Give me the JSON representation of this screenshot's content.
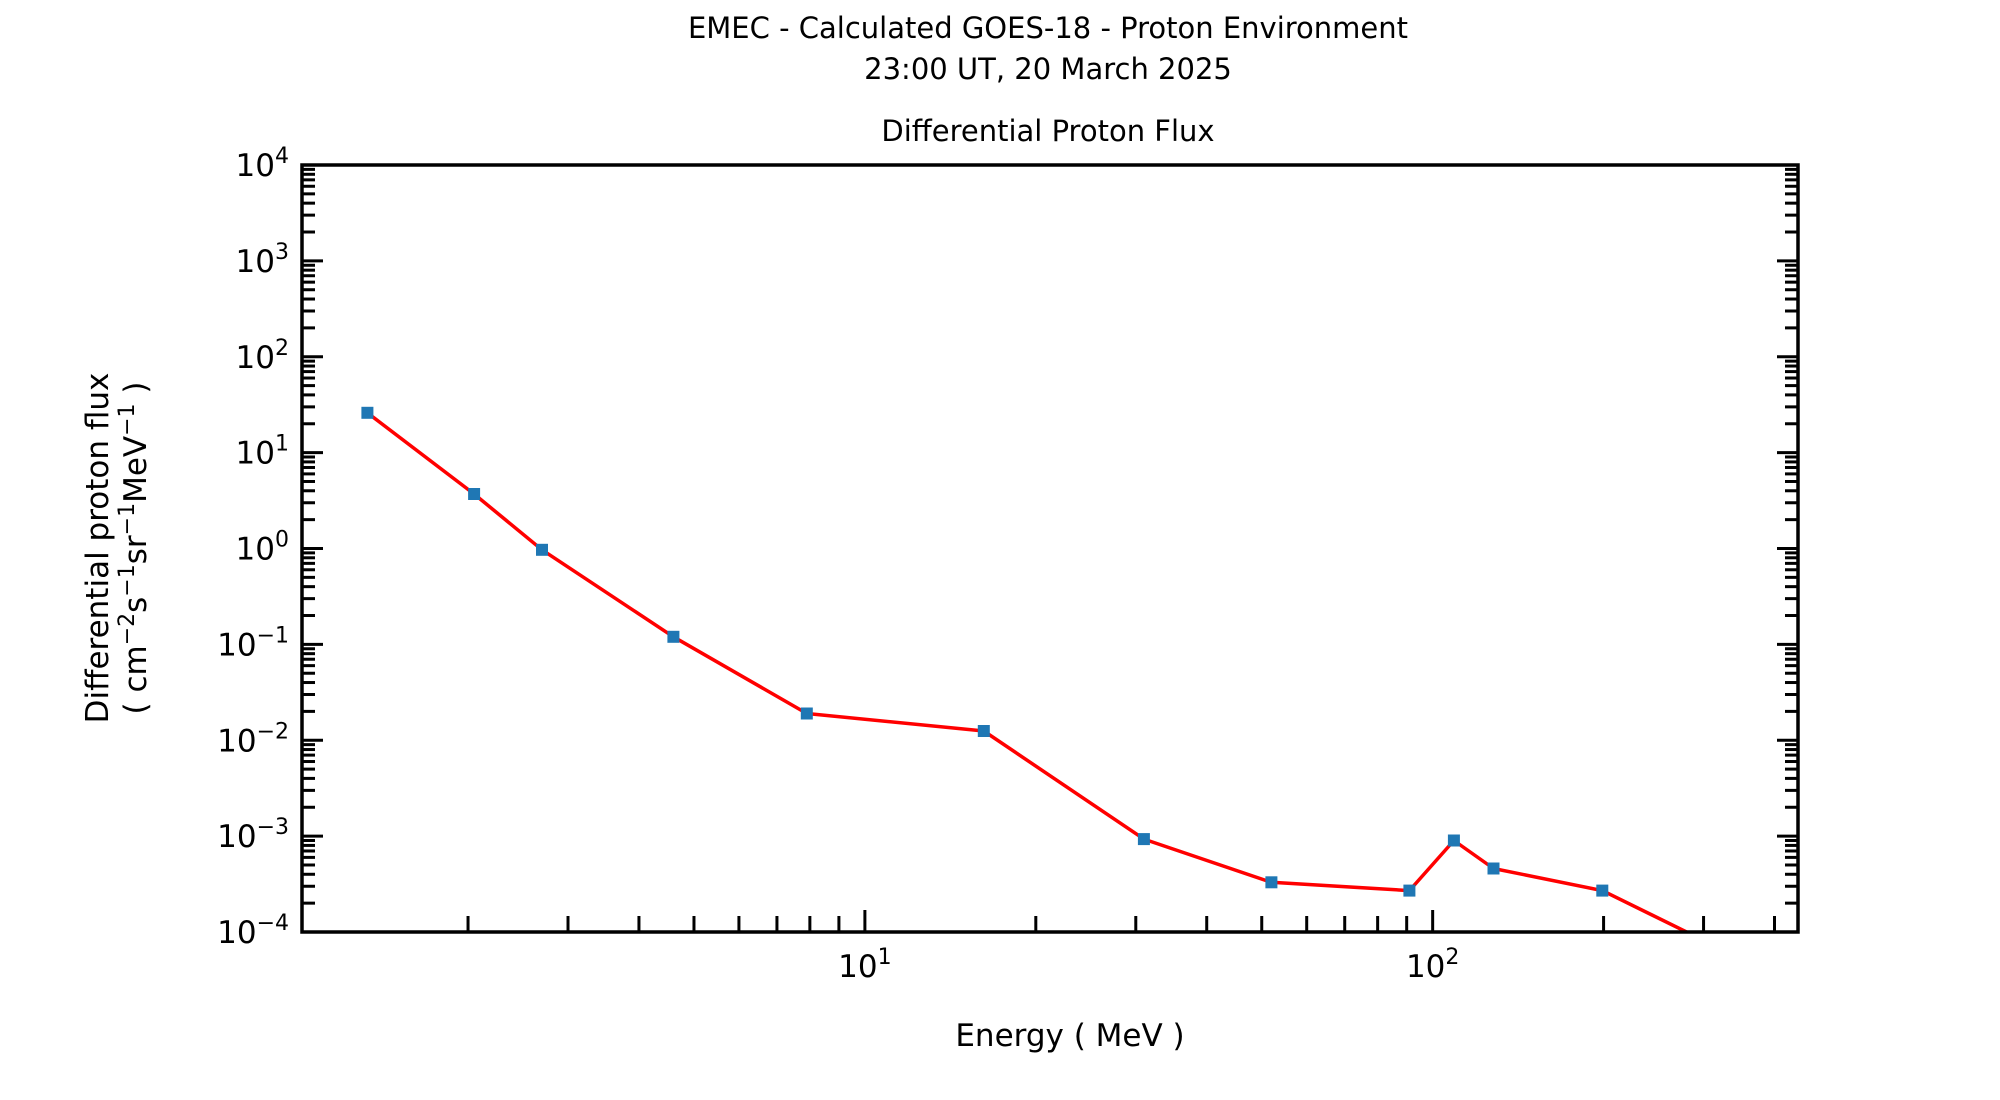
{
  "figure": {
    "title_line1": "EMEC - Calculated GOES-18 - Proton Environment",
    "title_line2": "23:00 UT, 20 March 2025"
  },
  "chart_data": {
    "type": "line",
    "title": "Differential Proton Flux",
    "xlabel": "Energy ( MeV )",
    "ylabel_line1": "Differential proton flux",
    "ylabel_line2_segments": [
      [
        "( cm",
        0
      ],
      [
        "−2",
        1
      ],
      [
        "s",
        0
      ],
      [
        "−1",
        1
      ],
      [
        "sr",
        0
      ],
      [
        "−1",
        1
      ],
      [
        "MeV",
        0
      ],
      [
        "−1",
        1
      ],
      [
        " )",
        0
      ]
    ],
    "x_scale": "log",
    "y_scale": "log",
    "xlim": [
      1.02,
      440
    ],
    "ylim": [
      0.0001,
      10000
    ],
    "grid": false,
    "legend": null,
    "tick_label_base": "10",
    "x_tick_label_exponents": [
      1,
      2
    ],
    "y_tick_label_exponents": [
      4,
      3,
      2,
      1,
      0,
      -1,
      -2,
      -3,
      -4
    ],
    "x_minor_decade_exponents": [
      0,
      1,
      2
    ],
    "line_color": "#ff0000",
    "marker_color": "#1f77b4",
    "series": [
      {
        "name": "differential proton flux",
        "marker": "square",
        "points": [
          {
            "energy_mev": 1.33,
            "flux": 26
          },
          {
            "energy_mev": 2.05,
            "flux": 3.7
          },
          {
            "energy_mev": 2.7,
            "flux": 0.97
          },
          {
            "energy_mev": 4.6,
            "flux": 0.12
          },
          {
            "energy_mev": 7.9,
            "flux": 0.019
          },
          {
            "energy_mev": 16.2,
            "flux": 0.0125
          },
          {
            "energy_mev": 31,
            "flux": 0.00093
          },
          {
            "energy_mev": 52,
            "flux": 0.00033
          },
          {
            "energy_mev": 91,
            "flux": 0.00027
          },
          {
            "energy_mev": 109,
            "flux": 0.0009
          },
          {
            "energy_mev": 128,
            "flux": 0.00046
          },
          {
            "energy_mev": 199,
            "flux": 0.00027
          },
          {
            "energy_mev": 334,
            "flux": 6e-05
          }
        ]
      }
    ]
  }
}
